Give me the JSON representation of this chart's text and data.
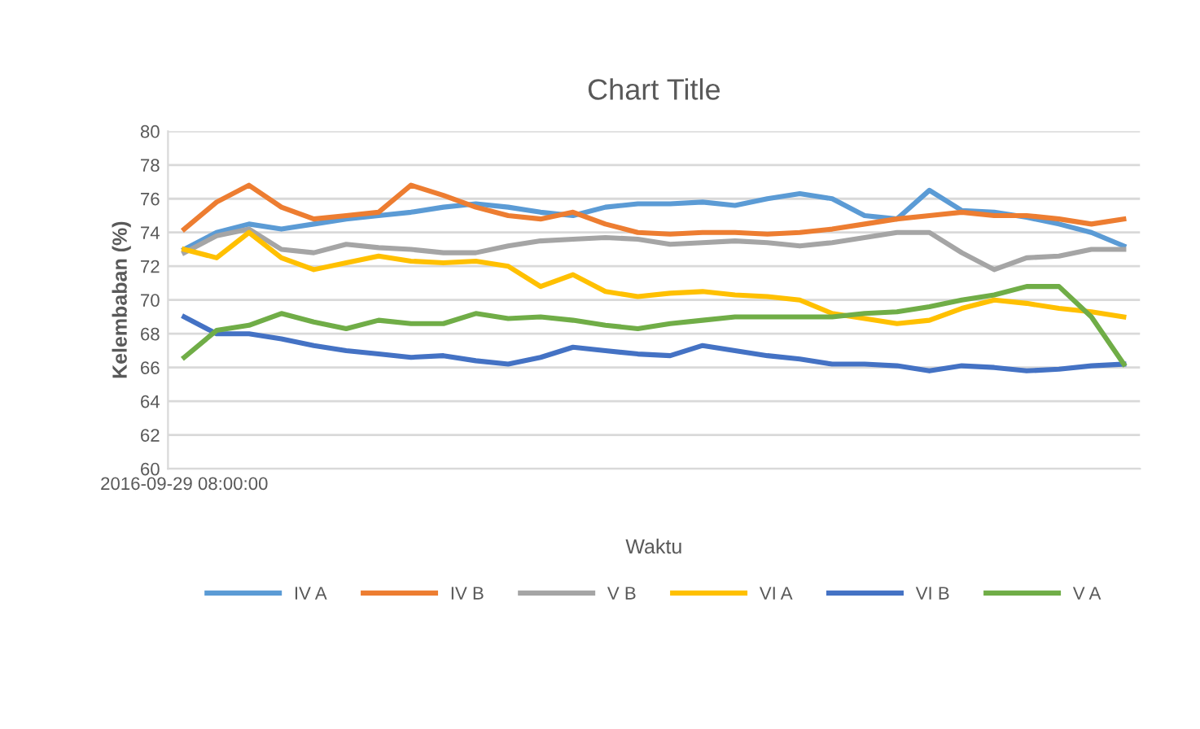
{
  "chart_data": {
    "type": "line",
    "title": "Chart Title",
    "xlabel": "Waktu",
    "ylabel": "Kelembaban (%)",
    "categories": [
      "2016-09-29 08:00:00",
      null,
      null,
      null,
      null,
      null,
      null,
      null,
      null,
      null,
      null,
      null,
      null,
      null,
      null,
      null,
      null,
      null,
      null,
      null,
      null,
      null,
      null,
      null,
      null,
      null,
      null,
      null,
      null,
      null
    ],
    "series": [
      {
        "name": "IV A",
        "color": "#5b9bd5",
        "values": [
          73,
          74,
          74.5,
          74.2,
          74.5,
          74.8,
          75,
          75.2,
          75.5,
          75.7,
          75.5,
          75.2,
          75,
          75.5,
          75.7,
          75.7,
          75.8,
          75.6,
          76,
          76.3,
          76,
          75,
          74.8,
          76.5,
          75.3,
          75.2,
          74.9,
          74.5,
          74,
          73.2
        ]
      },
      {
        "name": "IV B",
        "color": "#ed7d31",
        "values": [
          74.2,
          75.8,
          76.8,
          75.5,
          74.8,
          75,
          75.2,
          76.8,
          76.2,
          75.5,
          75,
          74.8,
          75.2,
          74.5,
          74,
          73.9,
          74,
          74,
          73.9,
          74,
          74.2,
          74.5,
          74.8,
          75,
          75.2,
          75,
          75,
          74.8,
          74.5,
          74.8
        ]
      },
      {
        "name": "V B",
        "color": "#a5a5a5",
        "values": [
          72.8,
          73.8,
          74.2,
          73,
          72.8,
          73.3,
          73.1,
          73,
          72.8,
          72.8,
          73.2,
          73.5,
          73.6,
          73.7,
          73.6,
          73.3,
          73.4,
          73.5,
          73.4,
          73.2,
          73.4,
          73.7,
          74,
          74,
          72.8,
          71.8,
          72.5,
          72.6,
          73,
          73
        ]
      },
      {
        "name": "VI A",
        "color": "#ffc000",
        "values": [
          73,
          72.5,
          74,
          72.5,
          71.8,
          72.2,
          72.6,
          72.3,
          72.2,
          72.3,
          72,
          70.8,
          71.5,
          70.5,
          70.2,
          70.4,
          70.5,
          70.3,
          70.2,
          70,
          69.2,
          68.9,
          68.6,
          68.8,
          69.5,
          70,
          69.8,
          69.5,
          69.3,
          69
        ]
      },
      {
        "name": "VI B",
        "color": "#4472c4",
        "values": [
          69,
          68,
          68,
          67.7,
          67.3,
          67,
          66.8,
          66.6,
          66.7,
          66.4,
          66.2,
          66.6,
          67.2,
          67,
          66.8,
          66.7,
          67.3,
          67,
          66.7,
          66.5,
          66.2,
          66.2,
          66.1,
          65.8,
          66.1,
          66,
          65.8,
          65.9,
          66.1,
          66.2
        ]
      },
      {
        "name": "V A",
        "color": "#70ad47",
        "values": [
          66.6,
          68.2,
          68.5,
          69.2,
          68.7,
          68.3,
          68.8,
          68.6,
          68.6,
          69.2,
          68.9,
          69,
          68.8,
          68.5,
          68.3,
          68.6,
          68.8,
          69,
          69,
          69,
          69,
          69.2,
          69.3,
          69.6,
          70,
          70.3,
          70.8,
          70.8,
          69,
          66.2
        ]
      }
    ],
    "ylim": [
      60,
      80
    ],
    "yticks": [
      60,
      62,
      64,
      66,
      68,
      70,
      72,
      74,
      76,
      78,
      80
    ],
    "grid": "y",
    "legend": "bottom",
    "marker": "none",
    "line_style": "solid"
  }
}
